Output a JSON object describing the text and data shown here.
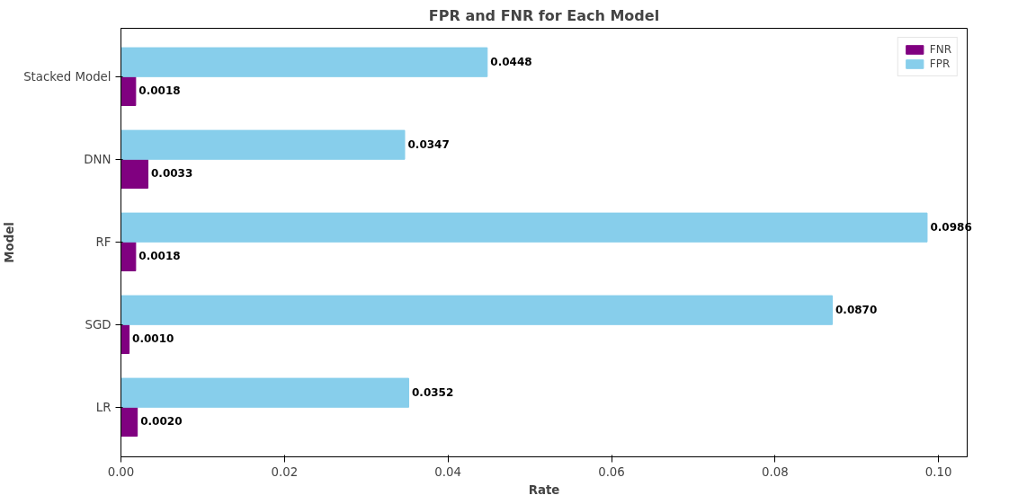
{
  "chart_data": {
    "type": "bar",
    "orientation": "horizontal",
    "title": "FPR and FNR for Each Model",
    "xlabel": "Rate",
    "ylabel": "Model",
    "categories": [
      "Stacked Model",
      "DNN",
      "RF",
      "SGD",
      "LR"
    ],
    "series": [
      {
        "name": "FNR",
        "color": "#800080",
        "values": [
          0.0018,
          0.0033,
          0.0018,
          0.001,
          0.002
        ],
        "value_labels": [
          "0.0018",
          "0.0033",
          "0.0018",
          "0.0010",
          "0.0020"
        ]
      },
      {
        "name": "FPR",
        "color": "#87ceeb",
        "values": [
          0.0448,
          0.0347,
          0.0986,
          0.087,
          0.0352
        ],
        "value_labels": [
          "0.0448",
          "0.0347",
          "0.0986",
          "0.0870",
          "0.0352"
        ]
      }
    ],
    "xlim": [
      0,
      0.1035
    ],
    "xticks": [
      {
        "value": 0,
        "label": "0.00"
      },
      {
        "value": 0.02,
        "label": "0.02"
      },
      {
        "value": 0.04,
        "label": "0.04"
      },
      {
        "value": 0.06,
        "label": "0.06"
      },
      {
        "value": 0.08,
        "label": "0.08"
      },
      {
        "value": 0.1,
        "label": "0.10"
      }
    ],
    "grid": false,
    "legend": "top right"
  }
}
